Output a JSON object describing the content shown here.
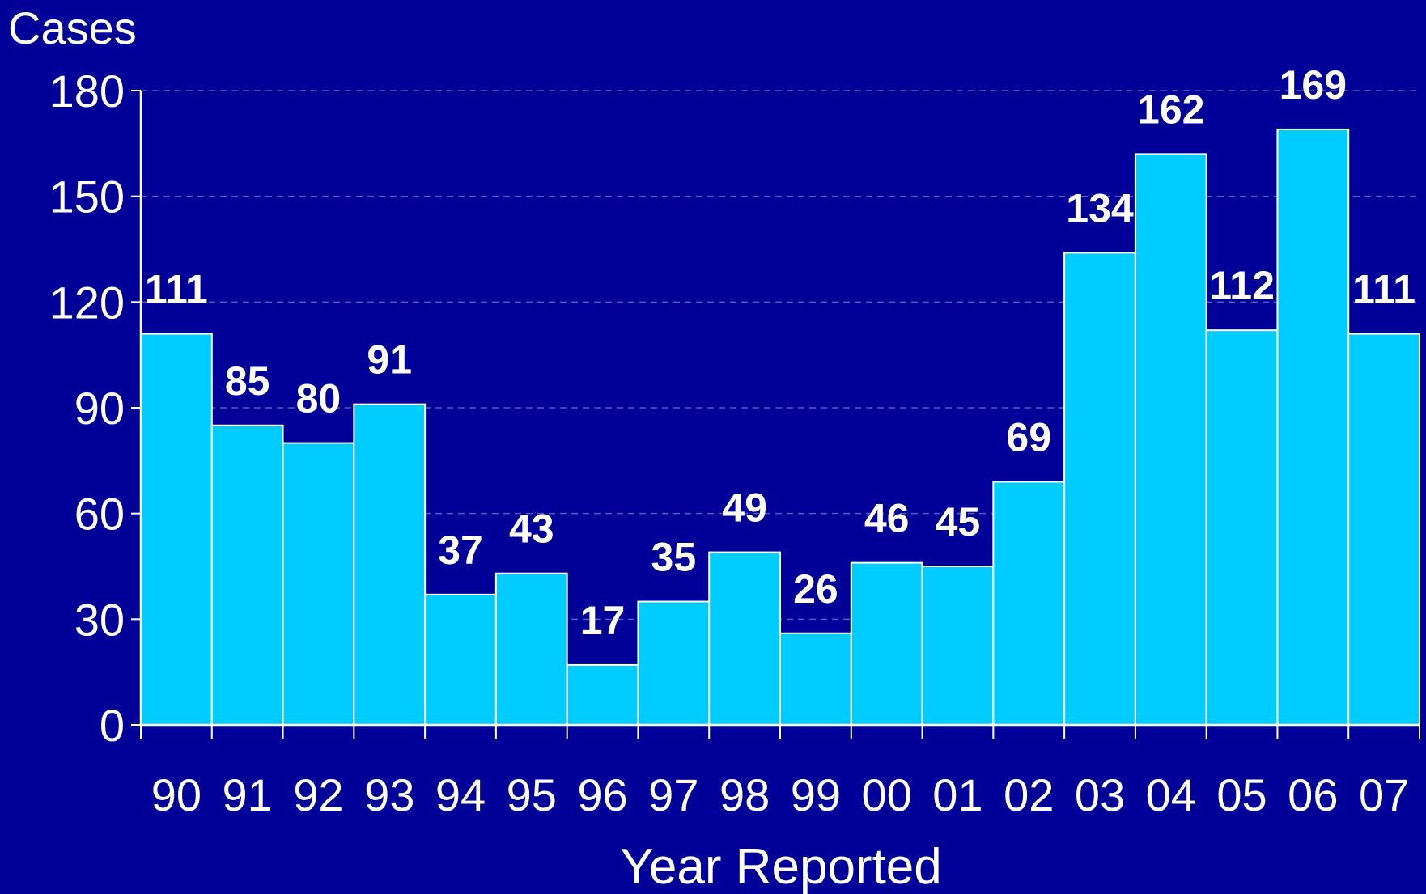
{
  "chart_data": {
    "type": "bar",
    "ylabel": "Cases",
    "xlabel": "Year Reported",
    "categories": [
      "90",
      "91",
      "92",
      "93",
      "94",
      "95",
      "96",
      "97",
      "98",
      "99",
      "00",
      "01",
      "02",
      "03",
      "04",
      "05",
      "06",
      "07"
    ],
    "values": [
      111,
      85,
      80,
      91,
      37,
      43,
      17,
      35,
      49,
      26,
      46,
      45,
      69,
      134,
      162,
      112,
      169,
      111
    ],
    "data_labels": [
      "111",
      "85",
      "80",
      "91",
      "37",
      "43",
      "17",
      "35",
      "49",
      "26",
      "46",
      "45",
      "69",
      "134",
      "162",
      "112",
      "169",
      "111"
    ],
    "ylim": [
      0,
      180
    ],
    "yticks": [
      "0",
      "30",
      "60",
      "90",
      "120",
      "150",
      "180"
    ],
    "grid": "dashed horizontal",
    "colors": {
      "background": "#000099",
      "bar_fill": "#00CCFF",
      "bar_stroke": "#FFFFFF",
      "text": "#FFFFFF",
      "grid": "#5A5AB8"
    }
  }
}
